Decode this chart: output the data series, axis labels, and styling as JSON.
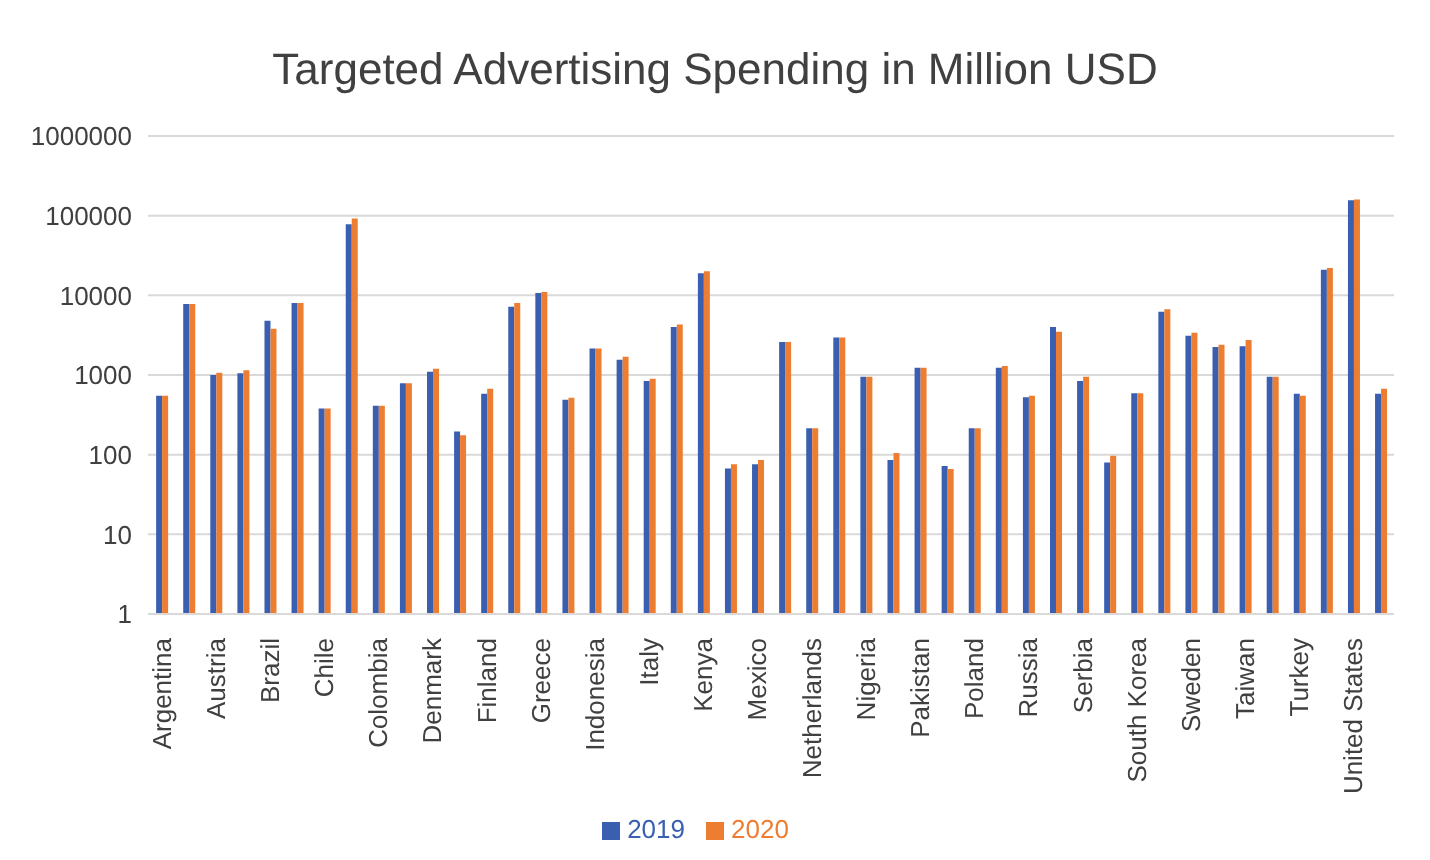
{
  "chart_data": {
    "type": "bar",
    "title": "Targeted Advertising Spending in Million USD",
    "categories": [
      "Argentina",
      null,
      "Austria",
      null,
      "Brazil",
      null,
      "Chile",
      null,
      "Colombia",
      null,
      "Denmark",
      null,
      "Finland",
      null,
      "Greece",
      null,
      "Indonesia",
      null,
      "Italy",
      null,
      "Kenya",
      null,
      "Mexico",
      null,
      "Netherlands",
      null,
      "Nigeria",
      null,
      "Pakistan",
      null,
      "Poland",
      null,
      "Russia",
      null,
      "Serbia",
      null,
      "South Korea",
      null,
      "Sweden",
      null,
      "Taiwan",
      null,
      "Turkey",
      null,
      "United States",
      null
    ],
    "series": [
      {
        "name": "2019",
        "color": "#3a5fb0",
        "values": [
          550,
          7800,
          1000,
          1050,
          4800,
          8000,
          380,
          78000,
          410,
          790,
          1100,
          195,
          580,
          7200,
          10700,
          490,
          2150,
          1550,
          840,
          4000,
          19000,
          67,
          76,
          2600,
          215,
          2950,
          950,
          86,
          1230,
          72,
          215,
          1230,
          525,
          4000,
          840,
          80,
          590,
          6200,
          3100,
          2250,
          2300,
          950,
          580,
          21000,
          156000,
          580
        ]
      },
      {
        "name": "2020",
        "color": "#ed7d31",
        "values": [
          550,
          7800,
          1070,
          1150,
          3800,
          8000,
          380,
          92000,
          410,
          790,
          1200,
          175,
          670,
          8000,
          11000,
          520,
          2150,
          1700,
          900,
          4300,
          20000,
          76,
          86,
          2600,
          215,
          2950,
          950,
          105,
          1230,
          66,
          215,
          1300,
          550,
          3500,
          950,
          97,
          590,
          6700,
          3400,
          2400,
          2750,
          950,
          550,
          22000,
          160000,
          670
        ]
      }
    ],
    "log": true,
    "ylim": [
      1,
      1000000
    ],
    "yticks": [
      1,
      10,
      100,
      1000,
      10000,
      100000,
      1000000
    ],
    "grid": "y",
    "legend": "bottom"
  }
}
